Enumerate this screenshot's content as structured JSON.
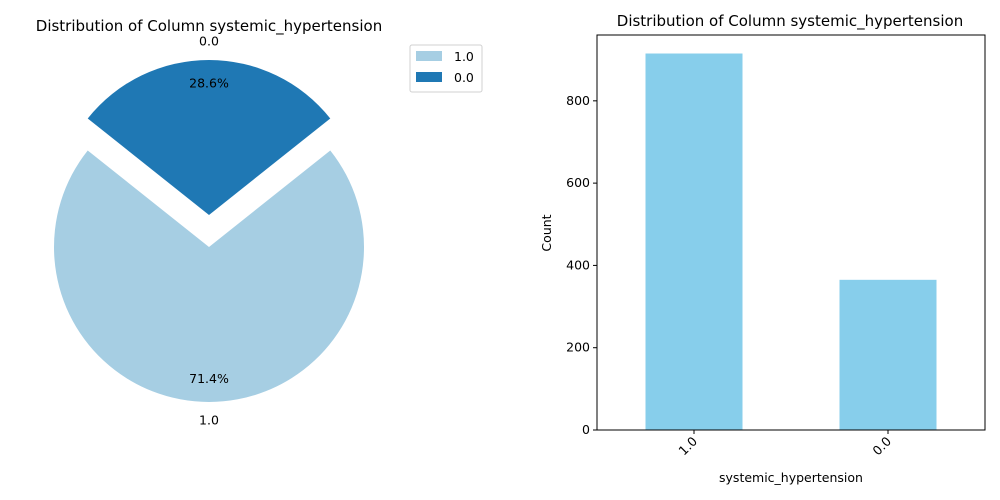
{
  "chart_data": [
    {
      "type": "pie",
      "title": "Distribution of Column systemic_hypertension",
      "categories": [
        "1.0",
        "0.0"
      ],
      "values": [
        71.4,
        28.6
      ],
      "percent_labels": [
        "71.4%",
        "28.6%"
      ],
      "colors": [
        "#a6cee3",
        "#1f78b4"
      ],
      "exploded": [
        "0.0"
      ],
      "legend": {
        "position": "top-right",
        "entries": [
          "1.0",
          "0.0"
        ]
      }
    },
    {
      "type": "bar",
      "title": "Distribution of Column systemic_hypertension",
      "categories": [
        "1.0",
        "0.0"
      ],
      "values": [
        915,
        365
      ],
      "xlabel": "systemic_hypertension",
      "ylabel": "Count",
      "ylim": [
        0,
        960
      ],
      "yticks": [
        0,
        200,
        400,
        600,
        800
      ],
      "color": "#87ceeb",
      "grid": false
    }
  ]
}
